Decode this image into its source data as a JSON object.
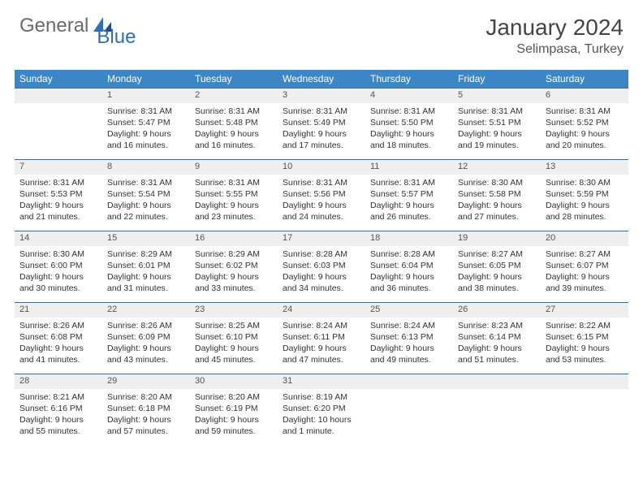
{
  "logo": {
    "general": "General",
    "blue": "Blue"
  },
  "title": "January 2024",
  "location": "Selimpasa, Turkey",
  "colors": {
    "header_bg": "#3d86c6",
    "header_text": "#ffffff",
    "daynum_bg": "#efefef",
    "border": "#2f6fb3",
    "logo_gray": "#6a6a6a",
    "logo_blue": "#2f6fb3"
  },
  "weekdays": [
    "Sunday",
    "Monday",
    "Tuesday",
    "Wednesday",
    "Thursday",
    "Friday",
    "Saturday"
  ],
  "weeks": [
    {
      "nums": [
        "",
        "1",
        "2",
        "3",
        "4",
        "5",
        "6"
      ],
      "info": [
        "",
        "Sunrise: 8:31 AM\nSunset: 5:47 PM\nDaylight: 9 hours and 16 minutes.",
        "Sunrise: 8:31 AM\nSunset: 5:48 PM\nDaylight: 9 hours and 16 minutes.",
        "Sunrise: 8:31 AM\nSunset: 5:49 PM\nDaylight: 9 hours and 17 minutes.",
        "Sunrise: 8:31 AM\nSunset: 5:50 PM\nDaylight: 9 hours and 18 minutes.",
        "Sunrise: 8:31 AM\nSunset: 5:51 PM\nDaylight: 9 hours and 19 minutes.",
        "Sunrise: 8:31 AM\nSunset: 5:52 PM\nDaylight: 9 hours and 20 minutes."
      ]
    },
    {
      "nums": [
        "7",
        "8",
        "9",
        "10",
        "11",
        "12",
        "13"
      ],
      "info": [
        "Sunrise: 8:31 AM\nSunset: 5:53 PM\nDaylight: 9 hours and 21 minutes.",
        "Sunrise: 8:31 AM\nSunset: 5:54 PM\nDaylight: 9 hours and 22 minutes.",
        "Sunrise: 8:31 AM\nSunset: 5:55 PM\nDaylight: 9 hours and 23 minutes.",
        "Sunrise: 8:31 AM\nSunset: 5:56 PM\nDaylight: 9 hours and 24 minutes.",
        "Sunrise: 8:31 AM\nSunset: 5:57 PM\nDaylight: 9 hours and 26 minutes.",
        "Sunrise: 8:30 AM\nSunset: 5:58 PM\nDaylight: 9 hours and 27 minutes.",
        "Sunrise: 8:30 AM\nSunset: 5:59 PM\nDaylight: 9 hours and 28 minutes."
      ]
    },
    {
      "nums": [
        "14",
        "15",
        "16",
        "17",
        "18",
        "19",
        "20"
      ],
      "info": [
        "Sunrise: 8:30 AM\nSunset: 6:00 PM\nDaylight: 9 hours and 30 minutes.",
        "Sunrise: 8:29 AM\nSunset: 6:01 PM\nDaylight: 9 hours and 31 minutes.",
        "Sunrise: 8:29 AM\nSunset: 6:02 PM\nDaylight: 9 hours and 33 minutes.",
        "Sunrise: 8:28 AM\nSunset: 6:03 PM\nDaylight: 9 hours and 34 minutes.",
        "Sunrise: 8:28 AM\nSunset: 6:04 PM\nDaylight: 9 hours and 36 minutes.",
        "Sunrise: 8:27 AM\nSunset: 6:05 PM\nDaylight: 9 hours and 38 minutes.",
        "Sunrise: 8:27 AM\nSunset: 6:07 PM\nDaylight: 9 hours and 39 minutes."
      ]
    },
    {
      "nums": [
        "21",
        "22",
        "23",
        "24",
        "25",
        "26",
        "27"
      ],
      "info": [
        "Sunrise: 8:26 AM\nSunset: 6:08 PM\nDaylight: 9 hours and 41 minutes.",
        "Sunrise: 8:26 AM\nSunset: 6:09 PM\nDaylight: 9 hours and 43 minutes.",
        "Sunrise: 8:25 AM\nSunset: 6:10 PM\nDaylight: 9 hours and 45 minutes.",
        "Sunrise: 8:24 AM\nSunset: 6:11 PM\nDaylight: 9 hours and 47 minutes.",
        "Sunrise: 8:24 AM\nSunset: 6:13 PM\nDaylight: 9 hours and 49 minutes.",
        "Sunrise: 8:23 AM\nSunset: 6:14 PM\nDaylight: 9 hours and 51 minutes.",
        "Sunrise: 8:22 AM\nSunset: 6:15 PM\nDaylight: 9 hours and 53 minutes."
      ]
    },
    {
      "nums": [
        "28",
        "29",
        "30",
        "31",
        "",
        "",
        ""
      ],
      "info": [
        "Sunrise: 8:21 AM\nSunset: 6:16 PM\nDaylight: 9 hours and 55 minutes.",
        "Sunrise: 8:20 AM\nSunset: 6:18 PM\nDaylight: 9 hours and 57 minutes.",
        "Sunrise: 8:20 AM\nSunset: 6:19 PM\nDaylight: 9 hours and 59 minutes.",
        "Sunrise: 8:19 AM\nSunset: 6:20 PM\nDaylight: 10 hours and 1 minute.",
        "",
        "",
        ""
      ]
    }
  ]
}
